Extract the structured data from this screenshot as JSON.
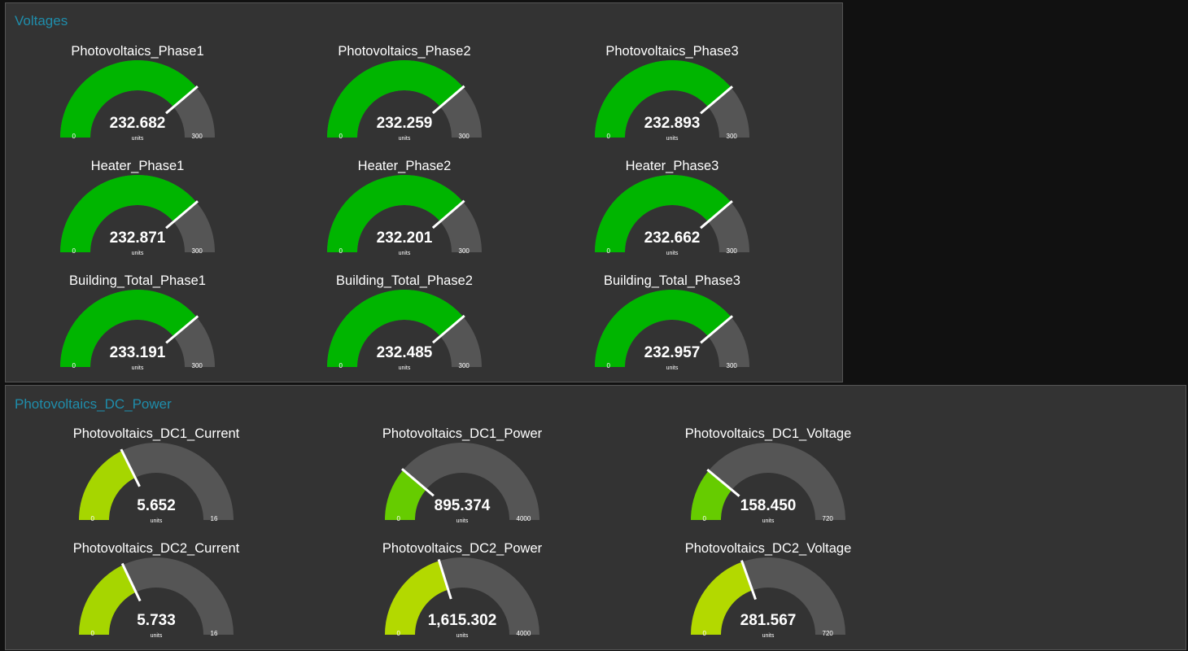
{
  "colors": {
    "background": "#111111",
    "panel": "#333333",
    "panel_title": "#1f8dab",
    "gauge_track": "#555555",
    "needle": "#ffffff"
  },
  "panels": [
    {
      "title": "Voltages",
      "gauges": [
        {
          "label": "Photovoltaics_Phase1",
          "value": 232.682,
          "display": "232.682",
          "units": "units",
          "min": 0,
          "max": 300,
          "min_label": "0",
          "max_label": "300",
          "color": "#00b500"
        },
        {
          "label": "Photovoltaics_Phase2",
          "value": 232.259,
          "display": "232.259",
          "units": "units",
          "min": 0,
          "max": 300,
          "min_label": "0",
          "max_label": "300",
          "color": "#00b500"
        },
        {
          "label": "Photovoltaics_Phase3",
          "value": 232.893,
          "display": "232.893",
          "units": "units",
          "min": 0,
          "max": 300,
          "min_label": "0",
          "max_label": "300",
          "color": "#00b500"
        },
        {
          "label": "Heater_Phase1",
          "value": 232.871,
          "display": "232.871",
          "units": "units",
          "min": 0,
          "max": 300,
          "min_label": "0",
          "max_label": "300",
          "color": "#00b500"
        },
        {
          "label": "Heater_Phase2",
          "value": 232.201,
          "display": "232.201",
          "units": "units",
          "min": 0,
          "max": 300,
          "min_label": "0",
          "max_label": "300",
          "color": "#00b500"
        },
        {
          "label": "Heater_Phase3",
          "value": 232.662,
          "display": "232.662",
          "units": "units",
          "min": 0,
          "max": 300,
          "min_label": "0",
          "max_label": "300",
          "color": "#00b500"
        },
        {
          "label": "Building_Total_Phase1",
          "value": 233.191,
          "display": "233.191",
          "units": "units",
          "min": 0,
          "max": 300,
          "min_label": "0",
          "max_label": "300",
          "color": "#00b500"
        },
        {
          "label": "Building_Total_Phase2",
          "value": 232.485,
          "display": "232.485",
          "units": "units",
          "min": 0,
          "max": 300,
          "min_label": "0",
          "max_label": "300",
          "color": "#00b500"
        },
        {
          "label": "Building_Total_Phase3",
          "value": 232.957,
          "display": "232.957",
          "units": "units",
          "min": 0,
          "max": 300,
          "min_label": "0",
          "max_label": "300",
          "color": "#00b500"
        }
      ]
    },
    {
      "title": "Photovoltaics_DC_Power",
      "gauges": [
        {
          "label": "Photovoltaics_DC1_Current",
          "value": 5.652,
          "display": "5.652",
          "units": "units",
          "min": 0,
          "max": 16,
          "min_label": "0",
          "max_label": "16",
          "color": "#a6d600"
        },
        {
          "label": "Photovoltaics_DC1_Power",
          "value": 895.374,
          "display": "895.374",
          "units": "units",
          "min": 0,
          "max": 4000,
          "min_label": "0",
          "max_label": "4000",
          "color": "#66cc00"
        },
        {
          "label": "Photovoltaics_DC1_Voltage",
          "value": 158.45,
          "display": "158.450",
          "units": "units",
          "min": 0,
          "max": 720,
          "min_label": "0",
          "max_label": "720",
          "color": "#66cc00"
        },
        {
          "label": "Photovoltaics_DC2_Current",
          "value": 5.733,
          "display": "5.733",
          "units": "units",
          "min": 0,
          "max": 16,
          "min_label": "0",
          "max_label": "16",
          "color": "#a6d600"
        },
        {
          "label": "Photovoltaics_DC2_Power",
          "value": 1615.302,
          "display": "1,615.302",
          "units": "units",
          "min": 0,
          "max": 4000,
          "min_label": "0",
          "max_label": "4000",
          "color": "#b3d900"
        },
        {
          "label": "Photovoltaics_DC2_Voltage",
          "value": 281.567,
          "display": "281.567",
          "units": "units",
          "min": 0,
          "max": 720,
          "min_label": "0",
          "max_label": "720",
          "color": "#b3d900"
        }
      ]
    }
  ]
}
